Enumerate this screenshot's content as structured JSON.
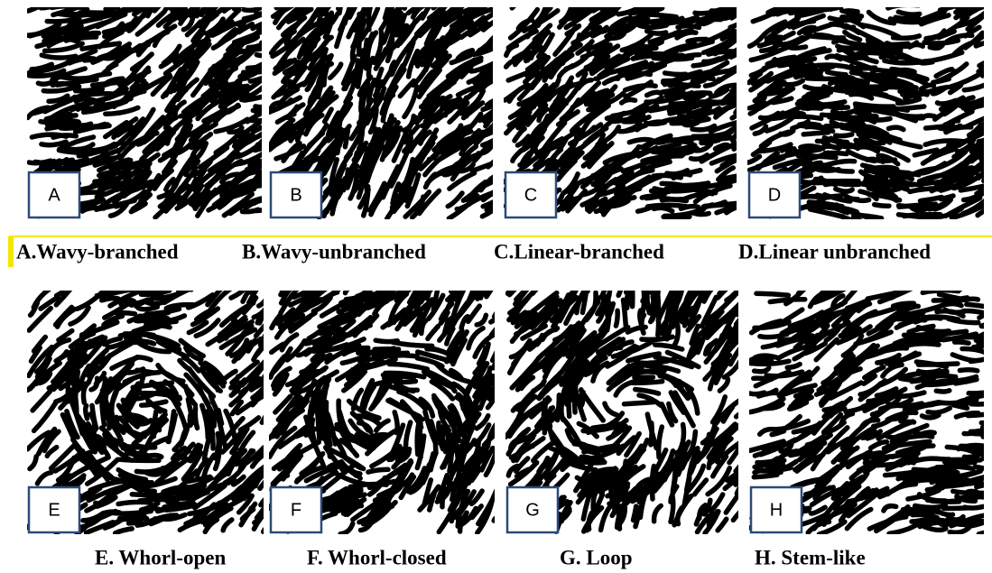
{
  "panels": [
    {
      "letter": "A",
      "caption": "A.Wavy-branched"
    },
    {
      "letter": "B",
      "caption": "B.Wavy-unbranched"
    },
    {
      "letter": "C",
      "caption": "C.Linear-branched"
    },
    {
      "letter": "D",
      "caption": "D.Linear unbranched"
    },
    {
      "letter": "E",
      "caption": "E. Whorl-open"
    },
    {
      "letter": "F",
      "caption": "F. Whorl-closed"
    },
    {
      "letter": "G",
      "caption": "G. Loop"
    },
    {
      "letter": "H",
      "caption": "H. Stem-like"
    }
  ]
}
